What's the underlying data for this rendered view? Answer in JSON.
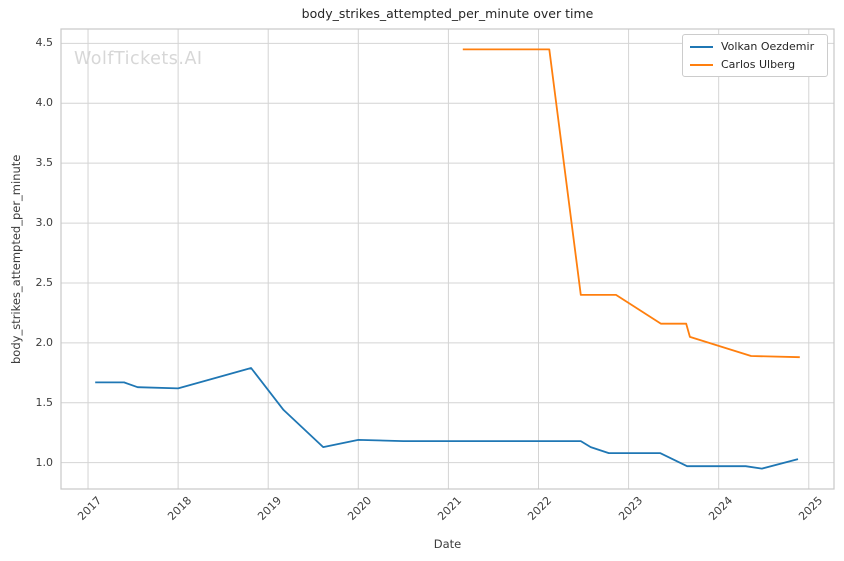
{
  "watermark": "WolfTickets.AI",
  "legend": {
    "items": [
      "Volkan Oezdemir",
      "Carlos Ulberg"
    ]
  },
  "chart_data": {
    "type": "line",
    "title": "body_strikes_attempted_per_minute over time",
    "xlabel": "Date",
    "ylabel": "body_strikes_attempted_per_minute",
    "grid": true,
    "legend_position": "upper right",
    "xlim": [
      2016.7,
      2025.28
    ],
    "ylim": [
      0.78,
      4.62
    ],
    "x_ticks": [
      2017,
      2018,
      2019,
      2020,
      2021,
      2022,
      2023,
      2024,
      2025
    ],
    "y_ticks": [
      1.0,
      1.5,
      2.0,
      2.5,
      3.0,
      3.5,
      4.0,
      4.5
    ],
    "series": [
      {
        "name": "Volkan Oezdemir",
        "color": "#1f77b4",
        "points": [
          [
            2017.08,
            1.67
          ],
          [
            2017.4,
            1.67
          ],
          [
            2017.55,
            1.63
          ],
          [
            2018.0,
            1.62
          ],
          [
            2018.81,
            1.79
          ],
          [
            2019.17,
            1.44
          ],
          [
            2019.61,
            1.13
          ],
          [
            2020.0,
            1.19
          ],
          [
            2020.5,
            1.18
          ],
          [
            2021.0,
            1.18
          ],
          [
            2021.5,
            1.18
          ],
          [
            2022.0,
            1.18
          ],
          [
            2022.47,
            1.18
          ],
          [
            2022.58,
            1.13
          ],
          [
            2022.78,
            1.08
          ],
          [
            2023.0,
            1.08
          ],
          [
            2023.35,
            1.08
          ],
          [
            2023.65,
            0.97
          ],
          [
            2024.0,
            0.97
          ],
          [
            2024.3,
            0.97
          ],
          [
            2024.48,
            0.95
          ],
          [
            2024.88,
            1.03
          ]
        ]
      },
      {
        "name": "Carlos Ulberg",
        "color": "#ff7f0e",
        "points": [
          [
            2021.16,
            4.45
          ],
          [
            2022.12,
            4.45
          ],
          [
            2022.47,
            2.4
          ],
          [
            2022.86,
            2.4
          ],
          [
            2023.36,
            2.16
          ],
          [
            2023.64,
            2.16
          ],
          [
            2023.68,
            2.05
          ],
          [
            2024.36,
            1.89
          ],
          [
            2024.9,
            1.88
          ]
        ]
      }
    ]
  }
}
